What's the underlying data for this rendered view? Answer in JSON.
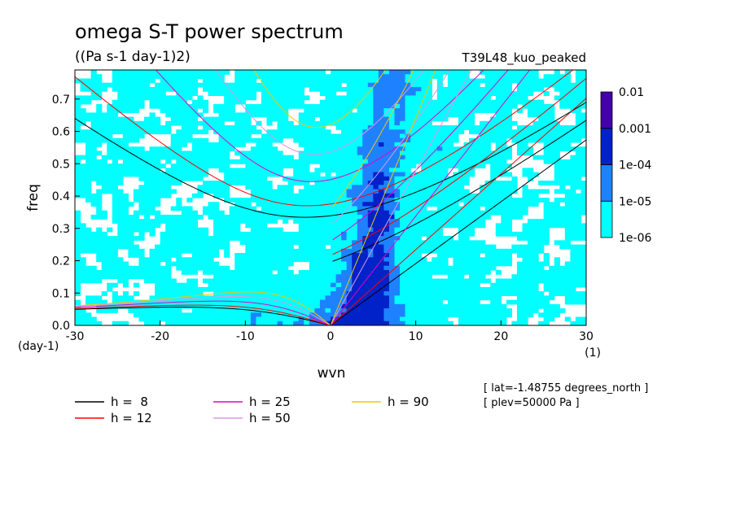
{
  "chart_data": {
    "type": "heatmap",
    "title": "omega S-T power spectrum",
    "subtitle": "((Pa s-1 day-1)2)",
    "run_label": "T39L48_kuo_peaked",
    "xlabel": "wvn",
    "ylabel": "freq",
    "x_unit": "(1)",
    "y_unit": "(day-1)",
    "xlim": [
      -30,
      30
    ],
    "ylim": [
      0,
      0.79
    ],
    "x_ticks": [
      -30,
      -20,
      -10,
      0,
      10,
      20,
      30
    ],
    "x_tick_labels": [
      "-30",
      "-20",
      "-10",
      "0",
      "10",
      "20",
      "30"
    ],
    "y_ticks": [
      0.0,
      0.1,
      0.2,
      0.3,
      0.4,
      0.5,
      0.6,
      0.7
    ],
    "y_tick_labels": [
      "0.0",
      "0.1",
      "0.2",
      "0.3",
      "0.4",
      "0.5",
      "0.6",
      "0.7"
    ],
    "colorbar": {
      "levels": [
        "1e-06",
        "1e-05",
        "1e-04",
        "0.001",
        "0.01"
      ],
      "colors": [
        "#00ffff",
        "#1e82ff",
        "#0022c8",
        "#4400aa"
      ]
    },
    "dispersion_curves": [
      {
        "label": "h =  8",
        "h": 8,
        "color": "#000000"
      },
      {
        "label": "h = 12",
        "h": 12,
        "color": "#ff0000"
      },
      {
        "label": "h = 25",
        "h": 25,
        "color": "#e600c8"
      },
      {
        "label": "h = 50",
        "h": 50,
        "color": "#dc96e6"
      },
      {
        "label": "h = 90",
        "h": 90,
        "color": "#f0c800"
      }
    ],
    "annotations": [
      "[ lat=-1.48755 degrees_north ]",
      "[ plev=50000 Pa ]"
    ]
  }
}
